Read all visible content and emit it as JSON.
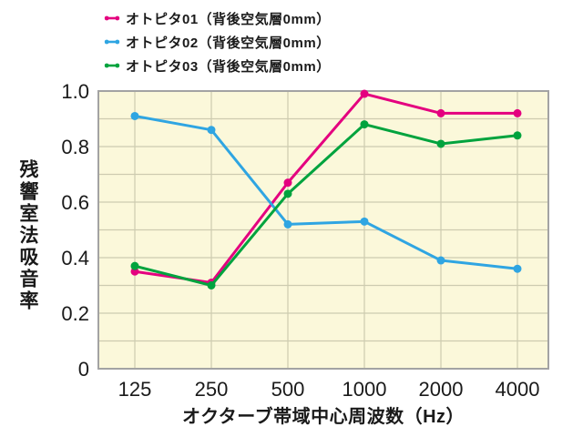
{
  "chart_data": {
    "type": "line",
    "categories": [
      "125",
      "250",
      "500",
      "1000",
      "2000",
      "4000"
    ],
    "series": [
      {
        "name": "オトピタ01（背後空気層0mm）",
        "color": "#e4007f",
        "values": [
          0.35,
          0.31,
          0.67,
          0.99,
          0.92,
          0.92
        ]
      },
      {
        "name": "オトピタ02（背後空気層0mm）",
        "color": "#2fa5e2",
        "values": [
          0.91,
          0.86,
          0.52,
          0.53,
          0.39,
          0.36
        ]
      },
      {
        "name": "オトピタ03（背後空気層0mm）",
        "color": "#00a33e",
        "values": [
          0.37,
          0.3,
          0.63,
          0.88,
          0.81,
          0.84
        ]
      }
    ],
    "title": "",
    "xlabel": "オクターブ帯域中心周波数（Hz）",
    "ylabel": "残響室法吸音率",
    "ylim": [
      0,
      1.0
    ],
    "y_ticks": [
      {
        "label": "1.0",
        "value": 1.0
      },
      {
        "label": "0.8",
        "value": 0.8
      },
      {
        "label": "0.6",
        "value": 0.6
      },
      {
        "label": "0.4",
        "value": 0.4
      },
      {
        "label": "0.2",
        "value": 0.2
      },
      {
        "label": "0",
        "value": 0
      }
    ],
    "grid": true,
    "grid_step": 0.1,
    "legend_position": "top-left",
    "colors": {
      "plot_background": "#fbf8da",
      "grid_line": "#cdcbb0",
      "frame": "#a3a3a3",
      "text": "#1a1a1a"
    }
  }
}
